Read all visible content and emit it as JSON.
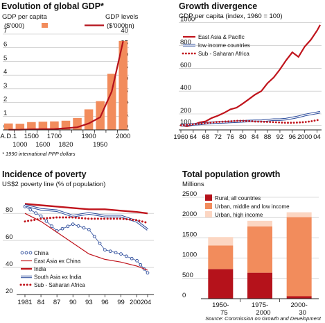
{
  "chart_data": [
    {
      "type": "bar",
      "title": "Evolution of global GDP*",
      "subtitle_left": "GDP per capita",
      "unit_left": "($'000)",
      "subtitle_right": "GDP levels",
      "unit_right": "($'000bn)",
      "footnote": "* 1990 international PPP dollars",
      "x_labels_top": [
        "A.D.1",
        "1500",
        "1700",
        "1900",
        "2000"
      ],
      "x_labels_bottom": [
        "1000",
        "1600",
        "1820",
        "1950"
      ],
      "left_ticks": [
        "7",
        "6",
        "5",
        "4",
        "3",
        "2",
        "1",
        "0"
      ],
      "right_ticks": [
        "40",
        "35",
        "30",
        "25",
        "20",
        "15",
        "10",
        "5",
        "0"
      ],
      "ylim_left": [
        0,
        7
      ],
      "ylim_right": [
        0,
        40
      ],
      "series": [
        {
          "name": "GDP per capita",
          "axis": "left",
          "color": "#f28c5c",
          "categories": [
            "A.D.1",
            "1000",
            "1500",
            "1600",
            "1700",
            "1820",
            "1870",
            "1913",
            "1950",
            "1973",
            "2003"
          ],
          "values": [
            0.47,
            0.45,
            0.57,
            0.6,
            0.62,
            0.67,
            0.87,
            1.5,
            2.1,
            4.1,
            6.5
          ]
        },
        {
          "name": "GDP levels",
          "axis": "right",
          "color": "#b5121b",
          "x": [
            1,
            1000,
            1500,
            1600,
            1700,
            1820,
            1870,
            1913,
            1950,
            1973,
            2003
          ],
          "values": [
            0.1,
            0.12,
            0.25,
            0.33,
            0.37,
            0.7,
            1.1,
            2.7,
            5.3,
            16,
            37
          ]
        }
      ]
    },
    {
      "type": "line",
      "title": "Growth divergence",
      "subtitle": "GDP per capita (index, 1960 = 100)",
      "x_ticks": [
        "1960",
        "64",
        "68",
        "72",
        "76",
        "80",
        "84",
        "88",
        "92",
        "96",
        "2000",
        "04"
      ],
      "y_ticks": [
        "1000",
        "800",
        "600",
        "400",
        "200",
        "100"
      ],
      "x": [
        1960,
        1962,
        1964,
        1966,
        1968,
        1970,
        1972,
        1974,
        1976,
        1978,
        1980,
        1982,
        1984,
        1986,
        1988,
        1990,
        1992,
        1994,
        1996,
        1998,
        2000,
        2002,
        2004,
        2005
      ],
      "ylim": [
        60,
        1010
      ],
      "series": [
        {
          "name": "East Asia & Pacific",
          "color": "#c0141c",
          "style": "solid",
          "values": [
            100,
            92,
            105,
            125,
            135,
            165,
            185,
            210,
            240,
            255,
            290,
            330,
            370,
            400,
            470,
            520,
            590,
            670,
            740,
            700,
            790,
            850,
            930,
            980
          ]
        },
        {
          "name": "low income countries",
          "color": "#2a4a9a",
          "style": "double",
          "values": [
            100,
            105,
            108,
            112,
            118,
            122,
            125,
            127,
            130,
            132,
            135,
            138,
            140,
            140,
            145,
            150,
            150,
            155,
            165,
            175,
            190,
            200,
            210,
            215
          ]
        },
        {
          "name": "Sub - Saharan Africa",
          "color": "#c0141c",
          "style": "dotted",
          "values": [
            100,
            105,
            110,
            115,
            120,
            125,
            130,
            133,
            135,
            140,
            140,
            138,
            133,
            132,
            130,
            128,
            125,
            123,
            123,
            125,
            128,
            135,
            145,
            150
          ]
        }
      ]
    },
    {
      "type": "line",
      "title": "Incidence of poverty",
      "subtitle": "US$2 poverty line (% of population)",
      "x_ticks": [
        "1981",
        "84",
        "87",
        "90",
        "93",
        "96",
        "99",
        "2002",
        "04"
      ],
      "y_ticks": [
        "80",
        "60",
        "40",
        "20"
      ],
      "x": [
        1981,
        1984,
        1987,
        1990,
        1993,
        1996,
        1999,
        2002,
        2004
      ],
      "ylim": [
        20,
        96
      ],
      "series": [
        {
          "name": "China",
          "color": "#2a4a9a",
          "style": "open-circles",
          "values": [
            85,
            78,
            67,
            72,
            68,
            53,
            50,
            45,
            36
          ]
        },
        {
          "name": "East Asia ex China",
          "color": "#c0141c",
          "style": "thin",
          "values": [
            80,
            74,
            66,
            58,
            50,
            46,
            44,
            41,
            38
          ]
        },
        {
          "name": "India",
          "color": "#c0141c",
          "style": "thick",
          "values": [
            87,
            86,
            85,
            84,
            83,
            83,
            82,
            81,
            80
          ]
        },
        {
          "name": "South Asia ex India",
          "color": "#2a4a9a",
          "style": "double",
          "values": [
            86,
            83,
            82,
            78,
            80,
            78,
            78,
            74,
            68
          ]
        },
        {
          "name": "Sub - Saharan Africa",
          "color": "#c0141c",
          "style": "dotted",
          "values": [
            74,
            76,
            77,
            77,
            76,
            76,
            76,
            75,
            73
          ]
        }
      ]
    },
    {
      "type": "bar",
      "stacked": true,
      "title": "Total population growth",
      "subtitle": "Millions",
      "categories": [
        "1950-\n75",
        "1975-\n2000",
        "2000-\n30"
      ],
      "y_ticks": [
        "2500",
        "2000",
        "1500",
        "1000",
        "500",
        "0"
      ],
      "ylim": [
        0,
        2500
      ],
      "series": [
        {
          "name": "Rural, all countries",
          "color": "#b5121b",
          "values": [
            730,
            640,
            60
          ]
        },
        {
          "name": "Urban, middle and low income",
          "color": "#f28c5c",
          "values": [
            580,
            1140,
            1950
          ]
        },
        {
          "name": "Urban, high income",
          "color": "#fcd6c2",
          "values": [
            210,
            140,
            120
          ]
        }
      ]
    }
  ],
  "source": "Source: Commission on Growth and Development"
}
